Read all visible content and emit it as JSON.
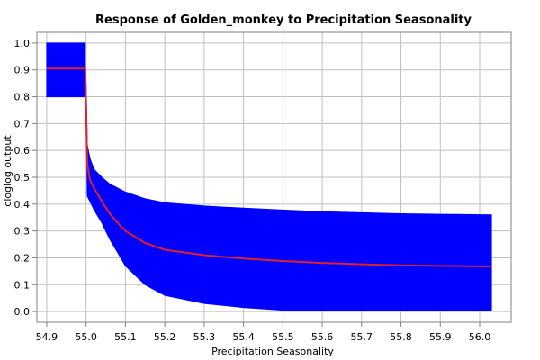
{
  "chart_data": {
    "type": "area",
    "title": "Response of Golden_monkey to Precipitation Seasonality",
    "xlabel": "Precipitation Seasonality",
    "ylabel": "cloglog output",
    "xlim": [
      54.875,
      56.08
    ],
    "ylim": [
      -0.04,
      1.04
    ],
    "xticks": [
      "54.9",
      "55.0",
      "55.1",
      "55.2",
      "55.3",
      "55.4",
      "55.5",
      "55.6",
      "55.7",
      "55.8",
      "55.9",
      "56.0"
    ],
    "yticks": [
      "0.0",
      "0.1",
      "0.2",
      "0.3",
      "0.4",
      "0.5",
      "0.6",
      "0.7",
      "0.8",
      "0.9",
      "1.0"
    ],
    "grid": true,
    "band_color": "#0000ff",
    "line_color": "#e0202a",
    "series": [
      {
        "role": "band",
        "x": [
          54.9,
          54.998,
          54.998,
          55.0,
          55.0,
          55.003,
          55.01,
          55.02,
          55.04,
          55.06,
          55.08,
          55.1,
          55.15,
          55.2,
          55.3,
          55.4,
          55.5,
          55.6,
          55.7,
          55.8,
          55.9,
          56.03
        ],
        "upper": [
          1.0,
          1.0,
          0.8,
          0.8,
          0.85,
          0.62,
          0.57,
          0.53,
          0.5,
          0.475,
          0.46,
          0.445,
          0.42,
          0.405,
          0.393,
          0.385,
          0.378,
          0.372,
          0.368,
          0.364,
          0.362,
          0.36
        ],
        "lower": [
          0.8,
          0.8,
          0.8,
          0.8,
          0.85,
          0.43,
          0.41,
          0.38,
          0.33,
          0.27,
          0.22,
          0.17,
          0.1,
          0.06,
          0.03,
          0.015,
          0.005,
          0.003,
          0.002,
          0.002,
          0.002,
          0.002
        ]
      },
      {
        "role": "line",
        "x": [
          54.9,
          54.998,
          55.0,
          55.003,
          55.01,
          55.02,
          55.04,
          55.06,
          55.08,
          55.1,
          55.15,
          55.2,
          55.3,
          55.4,
          55.5,
          55.6,
          55.7,
          55.8,
          55.9,
          56.03
        ],
        "y": [
          0.905,
          0.905,
          0.76,
          0.55,
          0.49,
          0.46,
          0.41,
          0.365,
          0.33,
          0.3,
          0.255,
          0.23,
          0.21,
          0.197,
          0.188,
          0.181,
          0.176,
          0.172,
          0.17,
          0.168
        ]
      }
    ]
  }
}
